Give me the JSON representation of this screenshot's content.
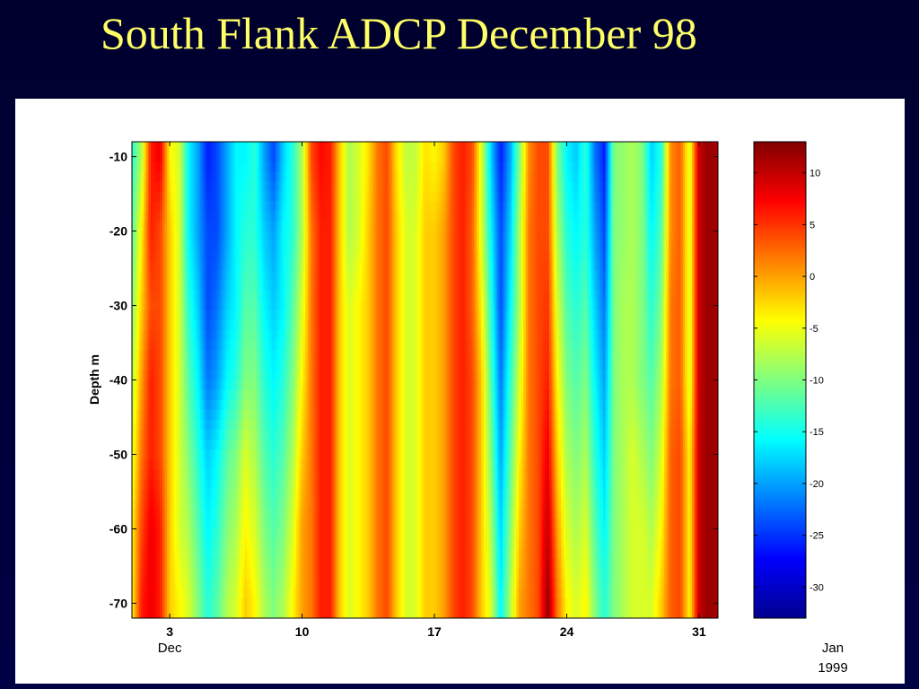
{
  "title": "South Flank ADCP December 98",
  "chart_data": {
    "type": "heatmap",
    "title": "",
    "ylabel": "Depth m",
    "xlabel": "",
    "x_range_days": [
      1,
      32
    ],
    "ylim": [
      -72,
      -8
    ],
    "y_ticks": [
      -10,
      -20,
      -30,
      -40,
      -50,
      -60,
      -70
    ],
    "x_ticks": [
      {
        "day": 3,
        "label": "3"
      },
      {
        "day": 10,
        "label": "10"
      },
      {
        "day": 17,
        "label": "17"
      },
      {
        "day": 24,
        "label": "24"
      },
      {
        "day": 31,
        "label": "31"
      }
    ],
    "x_sublabels": [
      {
        "label": "Dec",
        "under_tick": 0
      },
      {
        "label": "Jan",
        "under_tick": 4,
        "line": 0
      },
      {
        "label": "1999",
        "under_tick": 4,
        "line": 1
      }
    ],
    "colorbar": {
      "range": [
        -33,
        13
      ],
      "ticks": [
        10,
        5,
        0,
        -5,
        -10,
        -15,
        -20,
        -25,
        -30
      ],
      "colormap": "jet"
    },
    "depths": [
      -10,
      -20,
      -30,
      -40,
      -50,
      -60,
      -70
    ],
    "days": [
      1.0,
      1.5,
      2.0,
      2.5,
      3.0,
      3.5,
      4.0,
      4.5,
      5.0,
      5.5,
      6.0,
      6.5,
      7.0,
      7.5,
      8.0,
      8.5,
      9.0,
      9.5,
      10.0,
      10.5,
      11.0,
      11.5,
      12.0,
      12.5,
      13.0,
      13.5,
      14.0,
      14.5,
      15.0,
      15.5,
      16.0,
      16.5,
      17.0,
      17.5,
      18.0,
      18.5,
      19.0,
      19.5,
      20.0,
      20.5,
      21.0,
      21.5,
      22.0,
      22.5,
      23.0,
      23.5,
      24.0,
      24.5,
      25.0,
      25.5,
      26.0,
      26.5,
      27.0,
      27.5,
      28.0,
      28.5,
      29.0,
      29.5,
      30.0,
      30.5,
      31.0,
      31.5,
      32.0
    ],
    "values": [
      [
        -14,
        -8,
        6,
        8,
        -4,
        -6,
        -16,
        -20,
        -26,
        -24,
        -20,
        -16,
        -16,
        -14,
        -20,
        -24,
        -18,
        -14,
        -8,
        4,
        7,
        6,
        -2,
        -8,
        -6,
        -3,
        2,
        4,
        -3,
        -7,
        -7,
        -3,
        -4,
        -2,
        4,
        6,
        4,
        -6,
        -18,
        -26,
        -20,
        -10,
        1,
        4,
        4,
        -10,
        -16,
        -18,
        -14,
        -22,
        -26,
        -10,
        -9,
        -8,
        -10,
        -18,
        -14,
        1,
        3,
        -6,
        10,
        12,
        11
      ],
      [
        -12,
        -4,
        6,
        4,
        -2,
        -6,
        -16,
        -20,
        -24,
        -24,
        -20,
        -16,
        -14,
        -14,
        -18,
        -20,
        -16,
        -14,
        -8,
        2,
        6,
        6,
        -2,
        -8,
        -6,
        -2,
        2,
        4,
        -2,
        -6,
        -6,
        -2,
        -2,
        0,
        4,
        6,
        3,
        -6,
        -16,
        -24,
        -18,
        -8,
        2,
        4,
        4,
        -8,
        -14,
        -16,
        -14,
        -20,
        -24,
        -10,
        -9,
        -8,
        -10,
        -16,
        -12,
        1,
        3,
        -6,
        10,
        12,
        11
      ],
      [
        -10,
        -2,
        4,
        4,
        -2,
        -6,
        -14,
        -18,
        -24,
        -22,
        -18,
        -16,
        -12,
        -12,
        -16,
        -18,
        -16,
        -12,
        -6,
        2,
        6,
        6,
        -2,
        -6,
        -4,
        -2,
        2,
        4,
        -2,
        -6,
        -6,
        -2,
        -2,
        0,
        4,
        6,
        3,
        -4,
        -14,
        -24,
        -16,
        -8,
        2,
        4,
        5,
        -6,
        -12,
        -14,
        -12,
        -18,
        -22,
        -10,
        -8,
        -8,
        -10,
        -14,
        -10,
        2,
        3,
        -6,
        10,
        12,
        11
      ],
      [
        -8,
        0,
        6,
        4,
        -2,
        -6,
        -12,
        -16,
        -22,
        -20,
        -16,
        -14,
        -10,
        -10,
        -14,
        -16,
        -14,
        -10,
        -4,
        2,
        6,
        6,
        -2,
        -6,
        -4,
        -2,
        2,
        4,
        -2,
        -6,
        -6,
        -2,
        -2,
        0,
        4,
        6,
        4,
        -2,
        -12,
        -22,
        -14,
        -6,
        2,
        4,
        6,
        -4,
        -10,
        -12,
        -10,
        -16,
        -20,
        -10,
        -8,
        -8,
        -10,
        -12,
        -8,
        2,
        3,
        -6,
        10,
        12,
        11
      ],
      [
        -6,
        2,
        6,
        4,
        -2,
        -6,
        -10,
        -14,
        -18,
        -16,
        -12,
        -10,
        -6,
        -8,
        -12,
        -14,
        -12,
        -8,
        -2,
        2,
        6,
        6,
        -2,
        -6,
        -4,
        -2,
        2,
        4,
        -2,
        -6,
        -6,
        -2,
        -2,
        0,
        4,
        6,
        4,
        -2,
        -10,
        -20,
        -12,
        -4,
        2,
        4,
        8,
        -2,
        -8,
        -10,
        -8,
        -14,
        -18,
        -10,
        -8,
        -6,
        -8,
        -10,
        -6,
        3,
        4,
        -4,
        10,
        12,
        11
      ],
      [
        -4,
        4,
        8,
        6,
        -2,
        -6,
        -8,
        -12,
        -16,
        -14,
        -10,
        -8,
        -4,
        -6,
        -10,
        -12,
        -10,
        -6,
        0,
        2,
        6,
        6,
        -2,
        -6,
        -4,
        -2,
        2,
        4,
        -2,
        -6,
        -6,
        -2,
        -2,
        0,
        4,
        6,
        4,
        -2,
        -8,
        -18,
        -10,
        -2,
        2,
        4,
        10,
        0,
        -6,
        -8,
        -6,
        -12,
        -16,
        -10,
        -8,
        -6,
        -6,
        -8,
        -4,
        3,
        4,
        -4,
        10,
        12,
        11
      ],
      [
        -4,
        6,
        8,
        6,
        -2,
        -4,
        -6,
        -10,
        -14,
        -12,
        -8,
        -6,
        -2,
        -4,
        -8,
        -10,
        -8,
        -4,
        0,
        2,
        6,
        6,
        -2,
        -6,
        -4,
        -2,
        2,
        4,
        -2,
        -6,
        -6,
        -2,
        -2,
        0,
        4,
        6,
        4,
        -2,
        -6,
        -16,
        -8,
        0,
        2,
        4,
        12,
        2,
        -4,
        -6,
        -4,
        -10,
        -14,
        -10,
        -8,
        -6,
        -6,
        -6,
        -2,
        3,
        4,
        -4,
        10,
        12,
        11
      ]
    ]
  }
}
